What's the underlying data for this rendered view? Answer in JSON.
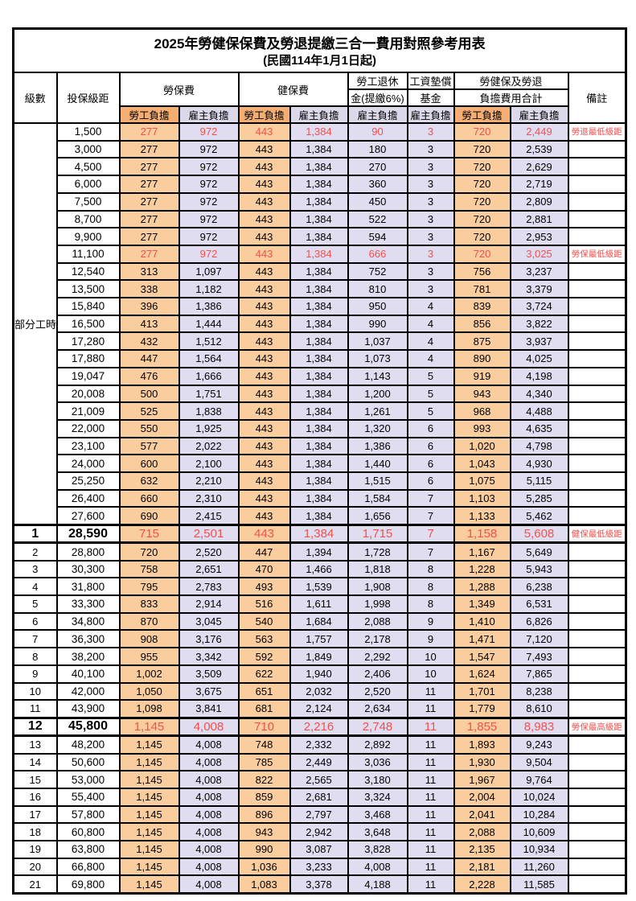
{
  "title": "2025年勞健保保費及勞退提繳三合一費用對照參考用表",
  "subtitle": "(民國114年1月1日起)",
  "header": {
    "level": "級數",
    "salary": "投保級距",
    "labor_fee": "勞保費",
    "health_fee": "健保費",
    "pension_line1": "勞工退休",
    "pension_line2": "金(提繳6%)",
    "wage_fund_line1": "工資墊償",
    "wage_fund_line2": "基金",
    "total_line1": "勞健保及勞退",
    "total_line2": "負擔費用合計",
    "note": "備註",
    "worker_share": "勞工負擔",
    "employer_share": "雇主負擔"
  },
  "part_time_label": "部分工時",
  "colors": {
    "header_worker_bg": "#F4AE72",
    "header_employer_bg": "#DBD8EA",
    "cell_worker_bg": "#FACD9F",
    "cell_employer_bg": "#E0DDF0",
    "highlight_red": "#F2514D",
    "border": "#000000"
  },
  "rows": [
    {
      "level": "",
      "salary": "1,500",
      "values": [
        "277",
        "972",
        "443",
        "1,384",
        "90",
        "3",
        "720",
        "2,449"
      ],
      "note": "勞退最低級距",
      "red": true,
      "emphasis": false
    },
    {
      "level": "",
      "salary": "3,000",
      "values": [
        "277",
        "972",
        "443",
        "1,384",
        "180",
        "3",
        "720",
        "2,539"
      ],
      "note": "",
      "red": false,
      "emphasis": false
    },
    {
      "level": "",
      "salary": "4,500",
      "values": [
        "277",
        "972",
        "443",
        "1,384",
        "270",
        "3",
        "720",
        "2,629"
      ],
      "note": "",
      "red": false,
      "emphasis": false
    },
    {
      "level": "",
      "salary": "6,000",
      "values": [
        "277",
        "972",
        "443",
        "1,384",
        "360",
        "3",
        "720",
        "2,719"
      ],
      "note": "",
      "red": false,
      "emphasis": false
    },
    {
      "level": "",
      "salary": "7,500",
      "values": [
        "277",
        "972",
        "443",
        "1,384",
        "450",
        "3",
        "720",
        "2,809"
      ],
      "note": "",
      "red": false,
      "emphasis": false
    },
    {
      "level": "",
      "salary": "8,700",
      "values": [
        "277",
        "972",
        "443",
        "1,384",
        "522",
        "3",
        "720",
        "2,881"
      ],
      "note": "",
      "red": false,
      "emphasis": false
    },
    {
      "level": "",
      "salary": "9,900",
      "values": [
        "277",
        "972",
        "443",
        "1,384",
        "594",
        "3",
        "720",
        "2,953"
      ],
      "note": "",
      "red": false,
      "emphasis": false
    },
    {
      "level": "",
      "salary": "11,100",
      "values": [
        "277",
        "972",
        "443",
        "1,384",
        "666",
        "3",
        "720",
        "3,025"
      ],
      "note": "勞保最低級距",
      "red": true,
      "emphasis": false
    },
    {
      "level": "",
      "salary": "12,540",
      "values": [
        "313",
        "1,097",
        "443",
        "1,384",
        "752",
        "3",
        "756",
        "3,237"
      ],
      "note": "",
      "red": false,
      "emphasis": false
    },
    {
      "level": "",
      "salary": "13,500",
      "values": [
        "338",
        "1,182",
        "443",
        "1,384",
        "810",
        "3",
        "781",
        "3,379"
      ],
      "note": "",
      "red": false,
      "emphasis": false
    },
    {
      "level": "",
      "salary": "15,840",
      "values": [
        "396",
        "1,386",
        "443",
        "1,384",
        "950",
        "4",
        "839",
        "3,724"
      ],
      "note": "",
      "red": false,
      "emphasis": false
    },
    {
      "level": "",
      "salary": "16,500",
      "values": [
        "413",
        "1,444",
        "443",
        "1,384",
        "990",
        "4",
        "856",
        "3,822"
      ],
      "note": "",
      "red": false,
      "emphasis": false
    },
    {
      "level": "",
      "salary": "17,280",
      "values": [
        "432",
        "1,512",
        "443",
        "1,384",
        "1,037",
        "4",
        "875",
        "3,937"
      ],
      "note": "",
      "red": false,
      "emphasis": false
    },
    {
      "level": "",
      "salary": "17,880",
      "values": [
        "447",
        "1,564",
        "443",
        "1,384",
        "1,073",
        "4",
        "890",
        "4,025"
      ],
      "note": "",
      "red": false,
      "emphasis": false
    },
    {
      "level": "",
      "salary": "19,047",
      "values": [
        "476",
        "1,666",
        "443",
        "1,384",
        "1,143",
        "5",
        "919",
        "4,198"
      ],
      "note": "",
      "red": false,
      "emphasis": false
    },
    {
      "level": "",
      "salary": "20,008",
      "values": [
        "500",
        "1,751",
        "443",
        "1,384",
        "1,200",
        "5",
        "943",
        "4,340"
      ],
      "note": "",
      "red": false,
      "emphasis": false
    },
    {
      "level": "",
      "salary": "21,009",
      "values": [
        "525",
        "1,838",
        "443",
        "1,384",
        "1,261",
        "5",
        "968",
        "4,488"
      ],
      "note": "",
      "red": false,
      "emphasis": false
    },
    {
      "level": "",
      "salary": "22,000",
      "values": [
        "550",
        "1,925",
        "443",
        "1,384",
        "1,320",
        "6",
        "993",
        "4,635"
      ],
      "note": "",
      "red": false,
      "emphasis": false
    },
    {
      "level": "",
      "salary": "23,100",
      "values": [
        "577",
        "2,022",
        "443",
        "1,384",
        "1,386",
        "6",
        "1,020",
        "4,798"
      ],
      "note": "",
      "red": false,
      "emphasis": false
    },
    {
      "level": "",
      "salary": "24,000",
      "values": [
        "600",
        "2,100",
        "443",
        "1,384",
        "1,440",
        "6",
        "1,043",
        "4,930"
      ],
      "note": "",
      "red": false,
      "emphasis": false
    },
    {
      "level": "",
      "salary": "25,250",
      "values": [
        "632",
        "2,210",
        "443",
        "1,384",
        "1,515",
        "6",
        "1,075",
        "5,115"
      ],
      "note": "",
      "red": false,
      "emphasis": false
    },
    {
      "level": "",
      "salary": "26,400",
      "values": [
        "660",
        "2,310",
        "443",
        "1,384",
        "1,584",
        "7",
        "1,103",
        "5,285"
      ],
      "note": "",
      "red": false,
      "emphasis": false
    },
    {
      "level": "",
      "salary": "27,600",
      "values": [
        "690",
        "2,415",
        "443",
        "1,384",
        "1,656",
        "7",
        "1,133",
        "5,462"
      ],
      "note": "",
      "red": false,
      "emphasis": false
    },
    {
      "level": "1",
      "salary": "28,590",
      "values": [
        "715",
        "2,501",
        "443",
        "1,384",
        "1,715",
        "7",
        "1,158",
        "5,608"
      ],
      "note": "健保最低級距",
      "red": true,
      "emphasis": true
    },
    {
      "level": "2",
      "salary": "28,800",
      "values": [
        "720",
        "2,520",
        "447",
        "1,394",
        "1,728",
        "7",
        "1,167",
        "5,649"
      ],
      "note": "",
      "red": false,
      "emphasis": false
    },
    {
      "level": "3",
      "salary": "30,300",
      "values": [
        "758",
        "2,651",
        "470",
        "1,466",
        "1,818",
        "8",
        "1,228",
        "5,943"
      ],
      "note": "",
      "red": false,
      "emphasis": false
    },
    {
      "level": "4",
      "salary": "31,800",
      "values": [
        "795",
        "2,783",
        "493",
        "1,539",
        "1,908",
        "8",
        "1,288",
        "6,238"
      ],
      "note": "",
      "red": false,
      "emphasis": false
    },
    {
      "level": "5",
      "salary": "33,300",
      "values": [
        "833",
        "2,914",
        "516",
        "1,611",
        "1,998",
        "8",
        "1,349",
        "6,531"
      ],
      "note": "",
      "red": false,
      "emphasis": false
    },
    {
      "level": "6",
      "salary": "34,800",
      "values": [
        "870",
        "3,045",
        "540",
        "1,684",
        "2,088",
        "9",
        "1,410",
        "6,826"
      ],
      "note": "",
      "red": false,
      "emphasis": false
    },
    {
      "level": "7",
      "salary": "36,300",
      "values": [
        "908",
        "3,176",
        "563",
        "1,757",
        "2,178",
        "9",
        "1,471",
        "7,120"
      ],
      "note": "",
      "red": false,
      "emphasis": false
    },
    {
      "level": "8",
      "salary": "38,200",
      "values": [
        "955",
        "3,342",
        "592",
        "1,849",
        "2,292",
        "10",
        "1,547",
        "7,493"
      ],
      "note": "",
      "red": false,
      "emphasis": false
    },
    {
      "level": "9",
      "salary": "40,100",
      "values": [
        "1,002",
        "3,509",
        "622",
        "1,940",
        "2,406",
        "10",
        "1,624",
        "7,865"
      ],
      "note": "",
      "red": false,
      "emphasis": false
    },
    {
      "level": "10",
      "salary": "42,000",
      "values": [
        "1,050",
        "3,675",
        "651",
        "2,032",
        "2,520",
        "11",
        "1,701",
        "8,238"
      ],
      "note": "",
      "red": false,
      "emphasis": false
    },
    {
      "level": "11",
      "salary": "43,900",
      "values": [
        "1,098",
        "3,841",
        "681",
        "2,124",
        "2,634",
        "11",
        "1,779",
        "8,610"
      ],
      "note": "",
      "red": false,
      "emphasis": false
    },
    {
      "level": "12",
      "salary": "45,800",
      "values": [
        "1,145",
        "4,008",
        "710",
        "2,216",
        "2,748",
        "11",
        "1,855",
        "8,983"
      ],
      "note": "勞保最高級距",
      "red": true,
      "emphasis": true
    },
    {
      "level": "13",
      "salary": "48,200",
      "values": [
        "1,145",
        "4,008",
        "748",
        "2,332",
        "2,892",
        "11",
        "1,893",
        "9,243"
      ],
      "note": "",
      "red": false,
      "emphasis": false
    },
    {
      "level": "14",
      "salary": "50,600",
      "values": [
        "1,145",
        "4,008",
        "785",
        "2,449",
        "3,036",
        "11",
        "1,930",
        "9,504"
      ],
      "note": "",
      "red": false,
      "emphasis": false
    },
    {
      "level": "15",
      "salary": "53,000",
      "values": [
        "1,145",
        "4,008",
        "822",
        "2,565",
        "3,180",
        "11",
        "1,967",
        "9,764"
      ],
      "note": "",
      "red": false,
      "emphasis": false
    },
    {
      "level": "16",
      "salary": "55,400",
      "values": [
        "1,145",
        "4,008",
        "859",
        "2,681",
        "3,324",
        "11",
        "2,004",
        "10,024"
      ],
      "note": "",
      "red": false,
      "emphasis": false
    },
    {
      "level": "17",
      "salary": "57,800",
      "values": [
        "1,145",
        "4,008",
        "896",
        "2,797",
        "3,468",
        "11",
        "2,041",
        "10,284"
      ],
      "note": "",
      "red": false,
      "emphasis": false
    },
    {
      "level": "18",
      "salary": "60,800",
      "values": [
        "1,145",
        "4,008",
        "943",
        "2,942",
        "3,648",
        "11",
        "2,088",
        "10,609"
      ],
      "note": "",
      "red": false,
      "emphasis": false
    },
    {
      "level": "19",
      "salary": "63,800",
      "values": [
        "1,145",
        "4,008",
        "990",
        "3,087",
        "3,828",
        "11",
        "2,135",
        "10,934"
      ],
      "note": "",
      "red": false,
      "emphasis": false
    },
    {
      "level": "20",
      "salary": "66,800",
      "values": [
        "1,145",
        "4,008",
        "1,036",
        "3,233",
        "4,008",
        "11",
        "2,181",
        "11,260"
      ],
      "note": "",
      "red": false,
      "emphasis": false
    },
    {
      "level": "21",
      "salary": "69,800",
      "values": [
        "1,145",
        "4,008",
        "1,083",
        "3,378",
        "4,188",
        "11",
        "2,228",
        "11,585"
      ],
      "note": "",
      "red": false,
      "emphasis": false
    }
  ]
}
